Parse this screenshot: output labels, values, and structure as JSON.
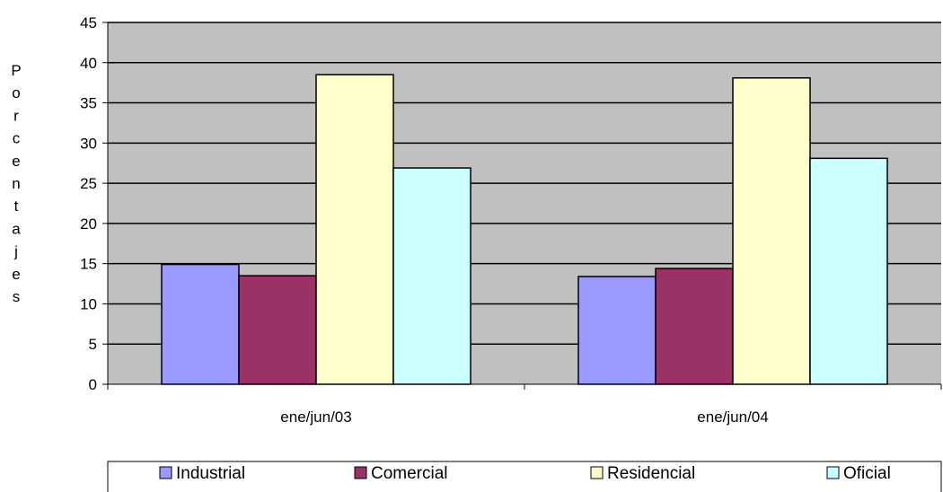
{
  "chart_data": {
    "type": "bar",
    "ylabel": "Porcentajes",
    "xlabel": "",
    "title": "",
    "ylim": [
      0,
      45
    ],
    "yticks": [
      0,
      5,
      10,
      15,
      20,
      25,
      30,
      35,
      40,
      45
    ],
    "grid": true,
    "legend": "bottom",
    "categories": [
      "ene/jun/03",
      "ene/jun/04"
    ],
    "series": [
      {
        "name": "Industrial",
        "color": "#9999ff",
        "values": [
          14.9,
          13.4
        ]
      },
      {
        "name": "Comercial",
        "color": "#993366",
        "values": [
          13.5,
          14.4
        ]
      },
      {
        "name": "Residencial",
        "color": "#ffffcc",
        "values": [
          38.5,
          38.1
        ]
      },
      {
        "name": "Oficial",
        "color": "#ccffff",
        "values": [
          26.9,
          28.1
        ]
      }
    ],
    "plot_background": "#c0c0c0"
  }
}
